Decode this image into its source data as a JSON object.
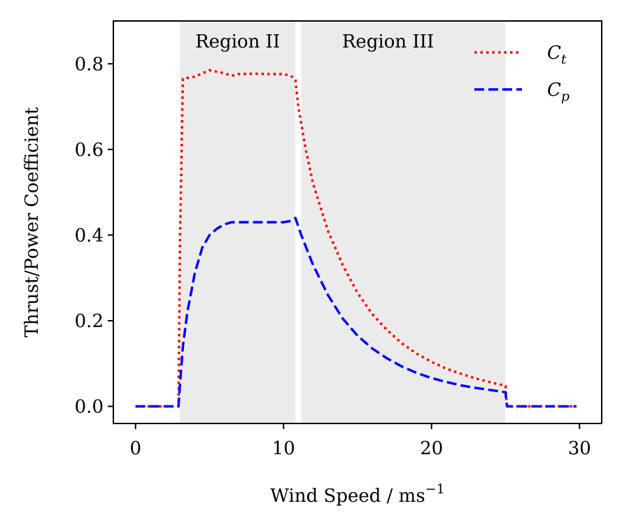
{
  "chart_data": {
    "type": "line",
    "title": "",
    "xlabel": "Wind Speed / ms",
    "xlabel_superscript": "−1",
    "ylabel": "Thrust/Power Coefficient",
    "xlim": [
      -1.5,
      31.5
    ],
    "ylim": [
      -0.04,
      0.9
    ],
    "xticks": [
      0,
      10,
      20,
      30
    ],
    "yticks": [
      0.0,
      0.2,
      0.4,
      0.6,
      0.8
    ],
    "xtick_labels": [
      "0",
      "10",
      "20",
      "30"
    ],
    "ytick_labels": [
      "0.0",
      "0.2",
      "0.4",
      "0.6",
      "0.8"
    ],
    "grid": false,
    "legend_position": "top-right",
    "regions": [
      {
        "label": "Region II",
        "x0": 3.0,
        "x1": 10.8,
        "color": "#ebebeb"
      },
      {
        "label": "Region III",
        "x0": 11.2,
        "x1": 25.0,
        "color": "#ebebeb"
      }
    ],
    "series": [
      {
        "name": "C",
        "subscript": "t",
        "color": "#ff0000",
        "style": "dotted",
        "x": [
          0,
          1,
          2,
          2.9,
          3.0,
          3.2,
          4,
          5,
          6,
          6.5,
          7,
          8,
          9,
          10,
          10.5,
          10.8,
          11.0,
          11.5,
          12,
          13,
          14,
          15,
          16,
          17,
          18,
          19,
          20,
          21,
          22,
          23,
          24,
          25,
          25.1,
          26,
          27,
          28,
          29,
          29.8
        ],
        "y": [
          0,
          0,
          0,
          0,
          0.38,
          0.765,
          0.77,
          0.785,
          0.778,
          0.772,
          0.776,
          0.777,
          0.776,
          0.776,
          0.772,
          0.762,
          0.7,
          0.6,
          0.52,
          0.41,
          0.33,
          0.265,
          0.215,
          0.178,
          0.147,
          0.123,
          0.104,
          0.088,
          0.076,
          0.065,
          0.056,
          0.048,
          0,
          0,
          0,
          0,
          0,
          0
        ]
      },
      {
        "name": "C",
        "subscript": "p",
        "color": "#0000ff",
        "style": "dashed",
        "x": [
          0,
          1,
          2,
          2.9,
          3.0,
          3.2,
          3.5,
          4,
          4.5,
          5,
          5.5,
          6,
          6.5,
          7,
          8,
          9,
          10,
          10.5,
          10.8,
          11.2,
          12,
          13,
          14,
          15,
          16,
          17,
          18,
          19,
          20,
          21,
          22,
          23,
          24,
          25,
          25.1,
          26,
          27,
          28,
          29,
          29.8
        ],
        "y": [
          0,
          0,
          0,
          0,
          0.05,
          0.14,
          0.22,
          0.31,
          0.37,
          0.4,
          0.415,
          0.425,
          0.43,
          0.43,
          0.43,
          0.43,
          0.43,
          0.433,
          0.44,
          0.4,
          0.33,
          0.26,
          0.205,
          0.165,
          0.135,
          0.112,
          0.093,
          0.078,
          0.066,
          0.057,
          0.049,
          0.043,
          0.038,
          0.033,
          0,
          0,
          0,
          0,
          0,
          0
        ]
      }
    ]
  }
}
